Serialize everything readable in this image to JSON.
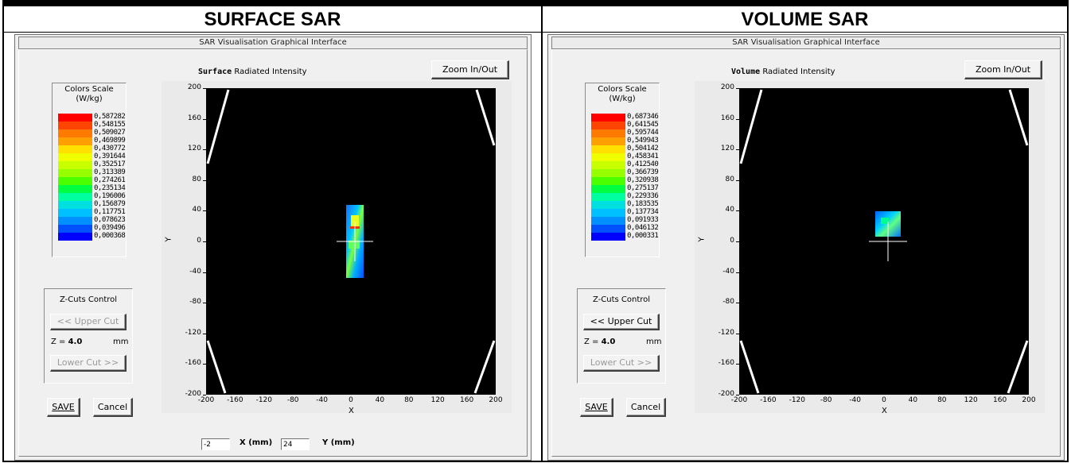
{
  "headings": {
    "left": "SURFACE SAR",
    "right": "VOLUME SAR"
  },
  "panels": [
    {
      "window_title": "SAR Visualisation Graphical Interface",
      "subtitle_bold": "Surface",
      "subtitle_rest": "Radiated Intensity",
      "zoom_label": "Zoom In/Out",
      "colors_scale_title": "Colors Scale",
      "colors_scale_unit": "(W/kg)",
      "scale_values": [
        "0,587282",
        "0,548155",
        "0,509027",
        "0,469899",
        "0,430772",
        "0,391644",
        "0,352517",
        "0,313389",
        "0,274261",
        "0,235134",
        "0,196006",
        "0,156879",
        "0,117751",
        "0,078623",
        "0,039496",
        "0,000368"
      ],
      "zcuts_title": "Z-Cuts Control",
      "upper_cut_label": "<< Upper Cut",
      "upper_cut_disabled": true,
      "z_prefix": "Z = ",
      "z_value": "4.0",
      "z_unit": "mm",
      "lower_cut_label": "Lower Cut >>",
      "save_label": "SAVE",
      "cancel_label": "Cancel",
      "x_ticks": [
        "-200",
        "-160",
        "-120",
        "-80",
        "-40",
        "0",
        "40",
        "80",
        "120",
        "160",
        "200"
      ],
      "y_ticks": [
        "200",
        "160",
        "120",
        "80",
        "40",
        "0",
        "-40",
        "-80",
        "-120",
        "-160",
        "-200"
      ],
      "x_axis_label": "X",
      "y_axis_label": "Y",
      "coord_x_value": "-2",
      "coord_x_label": "X (mm)",
      "coord_y_value": "24",
      "coord_y_label": "Y (mm)"
    },
    {
      "window_title": "SAR Visualisation Graphical Interface",
      "subtitle_bold": "Volume",
      "subtitle_rest": "Radiated Intensity",
      "zoom_label": "Zoom In/Out",
      "colors_scale_title": "Colors Scale",
      "colors_scale_unit": "(W/kg)",
      "scale_values": [
        "0,687346",
        "0,641545",
        "0,595744",
        "0,549943",
        "0,504142",
        "0,458341",
        "0,412540",
        "0,366739",
        "0,320938",
        "0,275137",
        "0,229336",
        "0,183535",
        "0,137734",
        "0,091933",
        "0,046132",
        "0,000331"
      ],
      "zcuts_title": "Z-Cuts Control",
      "upper_cut_label": "<< Upper Cut",
      "upper_cut_disabled": false,
      "z_prefix": "Z = ",
      "z_value": "4.0",
      "z_unit": "mm",
      "lower_cut_label": "Lower Cut >>",
      "save_label": "SAVE",
      "cancel_label": "Cancel",
      "x_ticks": [
        "-200",
        "-160",
        "-120",
        "-80",
        "-40",
        "0",
        "40",
        "80",
        "120",
        "160",
        "200"
      ],
      "y_ticks": [
        "200",
        "160",
        "120",
        "80",
        "40",
        "0",
        "-40",
        "-80",
        "-120",
        "-160",
        "-200"
      ],
      "x_axis_label": "X",
      "y_axis_label": "Y"
    }
  ],
  "scale_colors": [
    "#ff0000",
    "#ff4400",
    "#ff7a00",
    "#ffa000",
    "#ffe000",
    "#f0ff00",
    "#c8ff00",
    "#96ff00",
    "#4cff00",
    "#00ff40",
    "#00ffa0",
    "#00e0e0",
    "#00c0ff",
    "#0090ff",
    "#0050ff",
    "#0000ff"
  ]
}
